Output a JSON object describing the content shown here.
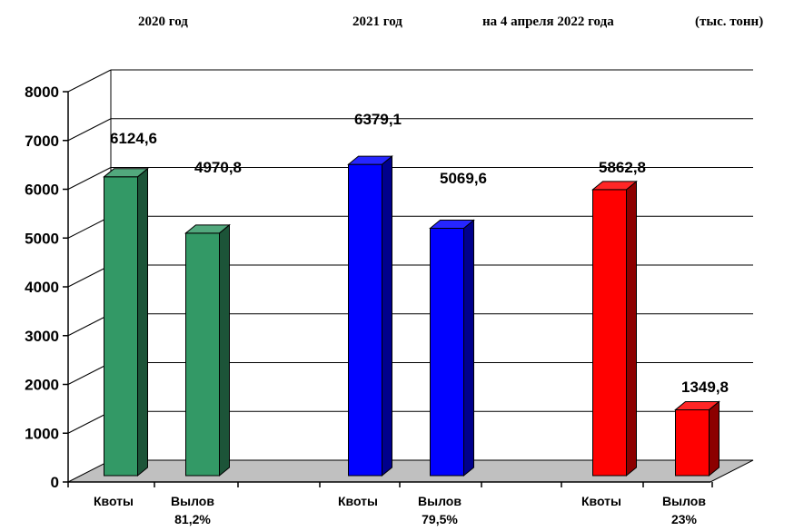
{
  "chart_data": {
    "type": "bar",
    "headers": [
      "2020  год",
      "2021  год",
      "на 4 апреля 2022 года",
      "(тыс. тонн)"
    ],
    "y_ticks": [
      "0",
      "1000",
      "2000",
      "3000",
      "4000",
      "5000",
      "6000",
      "7000",
      "8000"
    ],
    "ylim": [
      0,
      8000
    ],
    "grid": true,
    "groups": [
      {
        "color": "#339966",
        "bars": [
          {
            "category": "Квоты",
            "sublabel": "",
            "value": 6124.6,
            "label": "6124,6"
          },
          {
            "category": "Вылов",
            "sublabel": "81,2%",
            "value": 4970.8,
            "label": "4970,8"
          }
        ]
      },
      {
        "color": "#0000ff",
        "bars": [
          {
            "category": "Квоты",
            "sublabel": "",
            "value": 6379.1,
            "label": "6379,1"
          },
          {
            "category": "Вылов",
            "sublabel": "79,5%",
            "value": 5069.6,
            "label": "5069,6"
          }
        ]
      },
      {
        "color": "#ff0000",
        "bars": [
          {
            "category": "Квоты",
            "sublabel": "",
            "value": 5862.8,
            "label": "5862,8"
          },
          {
            "category": "Вылов",
            "sublabel": "23%",
            "value": 1349.8,
            "label": "1349,8"
          }
        ]
      }
    ]
  }
}
